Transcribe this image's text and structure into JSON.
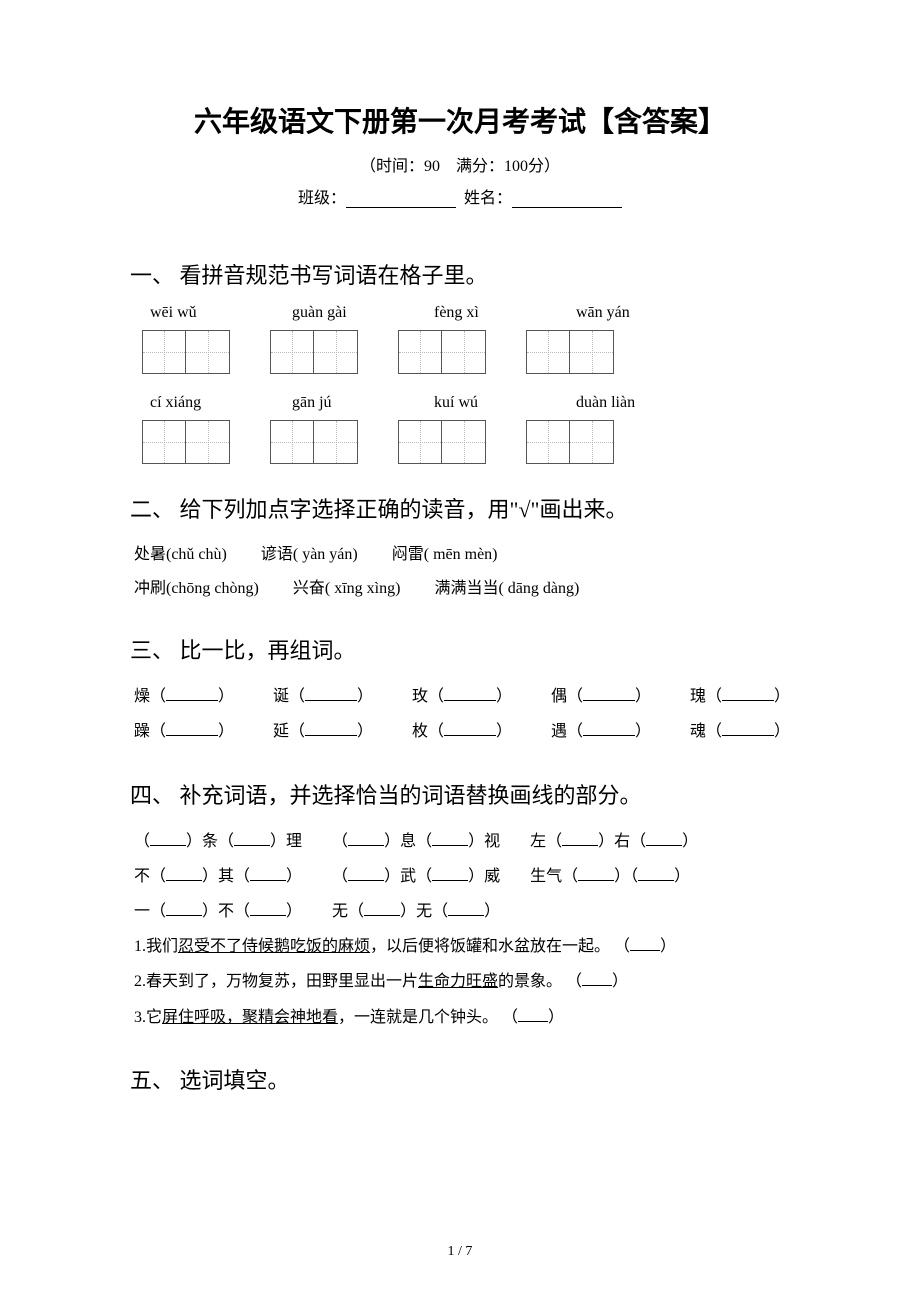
{
  "colors": {
    "background": "#ffffff",
    "text": "#000000",
    "grid_border": "#555555",
    "grid_guide": "#bbbbbb"
  },
  "typography": {
    "title_fontsize": 28,
    "section_fontsize": 22,
    "body_fontsize": 16,
    "title_font": "SimHei",
    "body_font": "SimSun"
  },
  "header": {
    "title": "六年级语文下册第一次月考考试【含答案】",
    "subtitle": "（时间：90　满分：100分）",
    "class_label": "班级：",
    "name_label": "姓名："
  },
  "section1": {
    "heading": "一、 看拼音规范书写词语在格子里。",
    "row1_pinyin": [
      "wēi wǔ",
      "guàn gài",
      "fèng xì",
      "wān yán"
    ],
    "row2_pinyin": [
      "cí xiáng",
      "gān  jú",
      "kuí wú",
      "duàn liàn"
    ]
  },
  "section2": {
    "heading": "二、 给下列加点字选择正确的读音，用\"√\"画出来。",
    "line1": {
      "a": "处暑(chǔ  chù)",
      "b": "谚语( yàn  yán)",
      "c": "闷雷( mēn  mèn)"
    },
    "line2": {
      "a": "冲刷(chōng  chòng)",
      "b": "兴奋( xīng  xìng)",
      "c": "满满当当( dāng  dàng)"
    }
  },
  "section3": {
    "heading": "三、 比一比，再组词。",
    "row1": [
      "燥",
      "诞",
      "玫",
      "偶",
      "瑰"
    ],
    "row2": [
      "躁",
      "延",
      "枚",
      "遇",
      "魂"
    ]
  },
  "section4": {
    "heading": "四、 补充词语，并选择恰当的词语替换画线的部分。",
    "phrases": {
      "line1": [
        {
          "parts": [
            "（",
            "）条（",
            "）理"
          ]
        },
        {
          "parts": [
            "（",
            "）息（",
            "）视"
          ]
        },
        {
          "parts": [
            "左（",
            "）右（",
            "）"
          ]
        }
      ],
      "line2": [
        {
          "parts": [
            "不（",
            "）其（",
            "）"
          ]
        },
        {
          "parts": [
            "（",
            "）武（",
            "）威"
          ]
        },
        {
          "parts": [
            "生气（",
            "）（",
            "）"
          ]
        }
      ],
      "line3": [
        {
          "parts": [
            "一（",
            "）不（",
            "）"
          ]
        },
        {
          "parts": [
            "无（",
            "）无（",
            "）"
          ]
        }
      ]
    },
    "sentences": [
      {
        "num": "1.",
        "before": "我们",
        "under": "忍受不了侍候鹅吃饭的麻烦",
        "after": "，以后便将饭罐和水盆放在一起。 （"
      },
      {
        "num": "2.",
        "before": "春天到了，万物复苏，田野里显出一片",
        "under": "生命力旺盛",
        "after": "的景象。 （"
      },
      {
        "num": "3.",
        "before": "它",
        "under": "屏住呼吸，聚精会神地看",
        "after": "，一连就是几个钟头。 （"
      }
    ]
  },
  "section5": {
    "heading": "五、 选词填空。"
  },
  "footer": {
    "page": "1 / 7"
  }
}
